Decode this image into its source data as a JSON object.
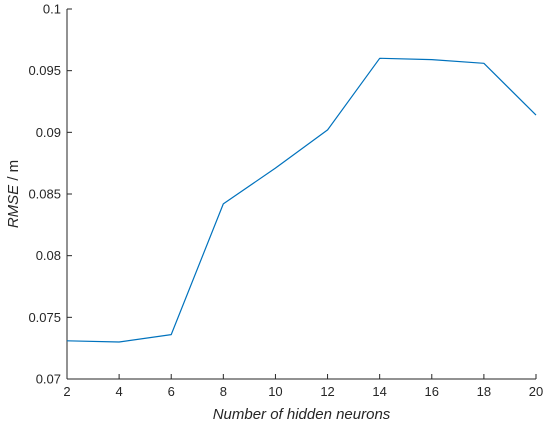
{
  "chart_data": {
    "type": "line",
    "x": [
      2,
      4,
      6,
      8,
      10,
      12,
      14,
      16,
      18,
      20
    ],
    "series": [
      {
        "values": [
          0.0731,
          0.073,
          0.0736,
          0.0842,
          0.0871,
          0.0902,
          0.096,
          0.0959,
          0.0956,
          0.0914
        ]
      }
    ],
    "xlabel": "Number of hidden neurons",
    "ylabel_italic": "RMSE",
    "ylabel_unit": " / m",
    "xlim": [
      2,
      20
    ],
    "ylim": [
      0.07,
      0.1
    ],
    "xticks": [
      2,
      4,
      6,
      8,
      10,
      12,
      14,
      16,
      18,
      20
    ],
    "xtick_labels": [
      "2",
      "4",
      "6",
      "8",
      "10",
      "12",
      "14",
      "16",
      "18",
      "20"
    ],
    "yticks": [
      0.07,
      0.075,
      0.08,
      0.085,
      0.09,
      0.095,
      0.1
    ],
    "ytick_labels": [
      "0.07",
      "0.075",
      "0.08",
      "0.085",
      "0.09",
      "0.095",
      "0.1"
    ],
    "grid": false,
    "line_color": "#0072BD"
  }
}
